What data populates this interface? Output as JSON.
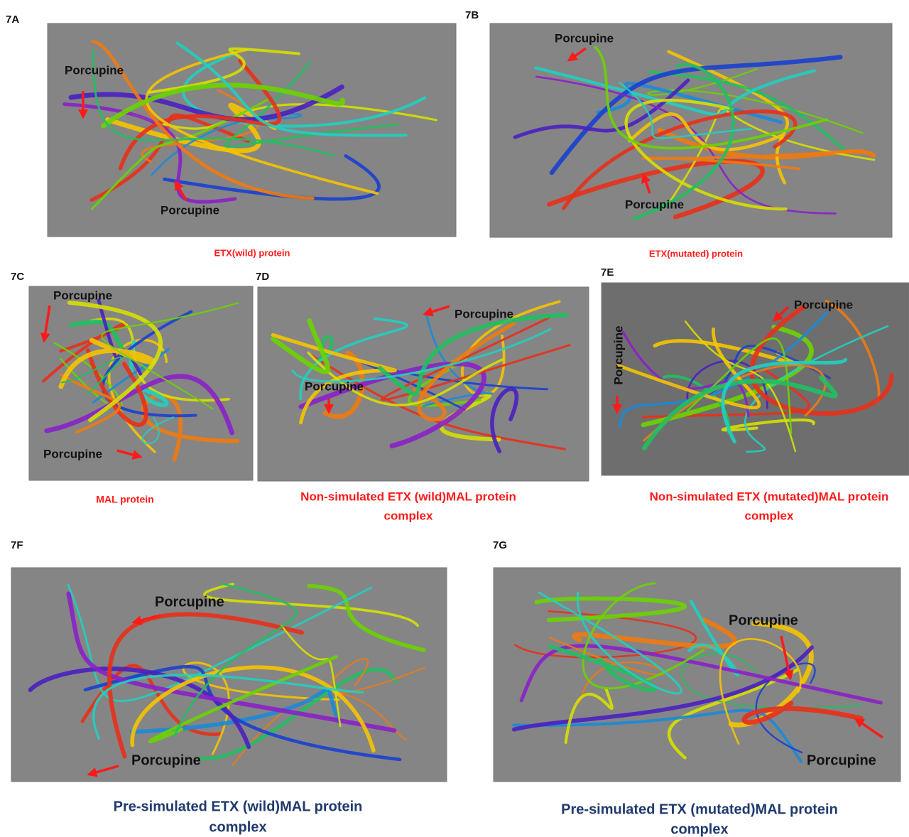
{
  "panels": [
    {
      "label": "7A",
      "annotations": [
        "Porcupine",
        "Porcupine"
      ],
      "caption": [
        "ETX(wild) protein"
      ]
    },
    {
      "label": "7B",
      "annotations": [
        "Porcupine",
        "Porcupine"
      ],
      "caption": [
        "ETX(mutated) protein"
      ]
    },
    {
      "label": "7C",
      "annotations": [
        "Porcupine",
        "Porcupine"
      ],
      "caption": [
        "MAL protein"
      ]
    },
    {
      "label": "7D",
      "annotations": [
        "Porcupine",
        "Porcupine"
      ],
      "caption": [
        "Non-simulated ETX (wild)MAL protein",
        "complex"
      ]
    },
    {
      "label": "7E",
      "annotations": [
        "Porcupine",
        "Porcupine"
      ],
      "caption": [
        "Non-simulated ETX (mutated)MAL protein",
        "complex"
      ]
    },
    {
      "label": "7F",
      "annotations": [
        "Porcupine",
        "Porcupine"
      ],
      "caption": [
        "Pre-simulated ETX (wild)MAL protein",
        "complex"
      ]
    },
    {
      "label": "7G",
      "annotations": [
        "Porcupine",
        "Porcupine"
      ],
      "caption": [
        "Pre-simulated ETX (mutated)MAL protein",
        "complex"
      ]
    }
  ]
}
